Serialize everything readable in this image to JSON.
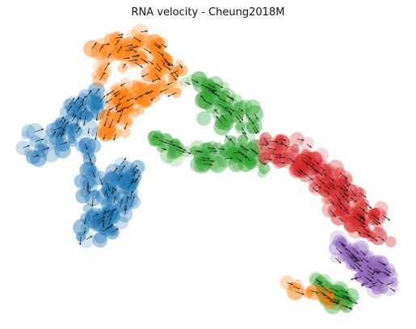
{
  "chart_data": {
    "type": "scatter",
    "title": "RNA velocity - Cheung2018M",
    "xlabel": "",
    "ylabel": "",
    "axes_visible": false,
    "grid": false,
    "overlay": "velocity arrows",
    "colors": {
      "cluster_blue": "#1f77b4",
      "cluster_orange": "#ff7f0e",
      "cluster_green": "#2ca02c",
      "cluster_red": "#d62728",
      "cluster_purple": "#9467bd",
      "arrow": "#222222"
    }
  }
}
